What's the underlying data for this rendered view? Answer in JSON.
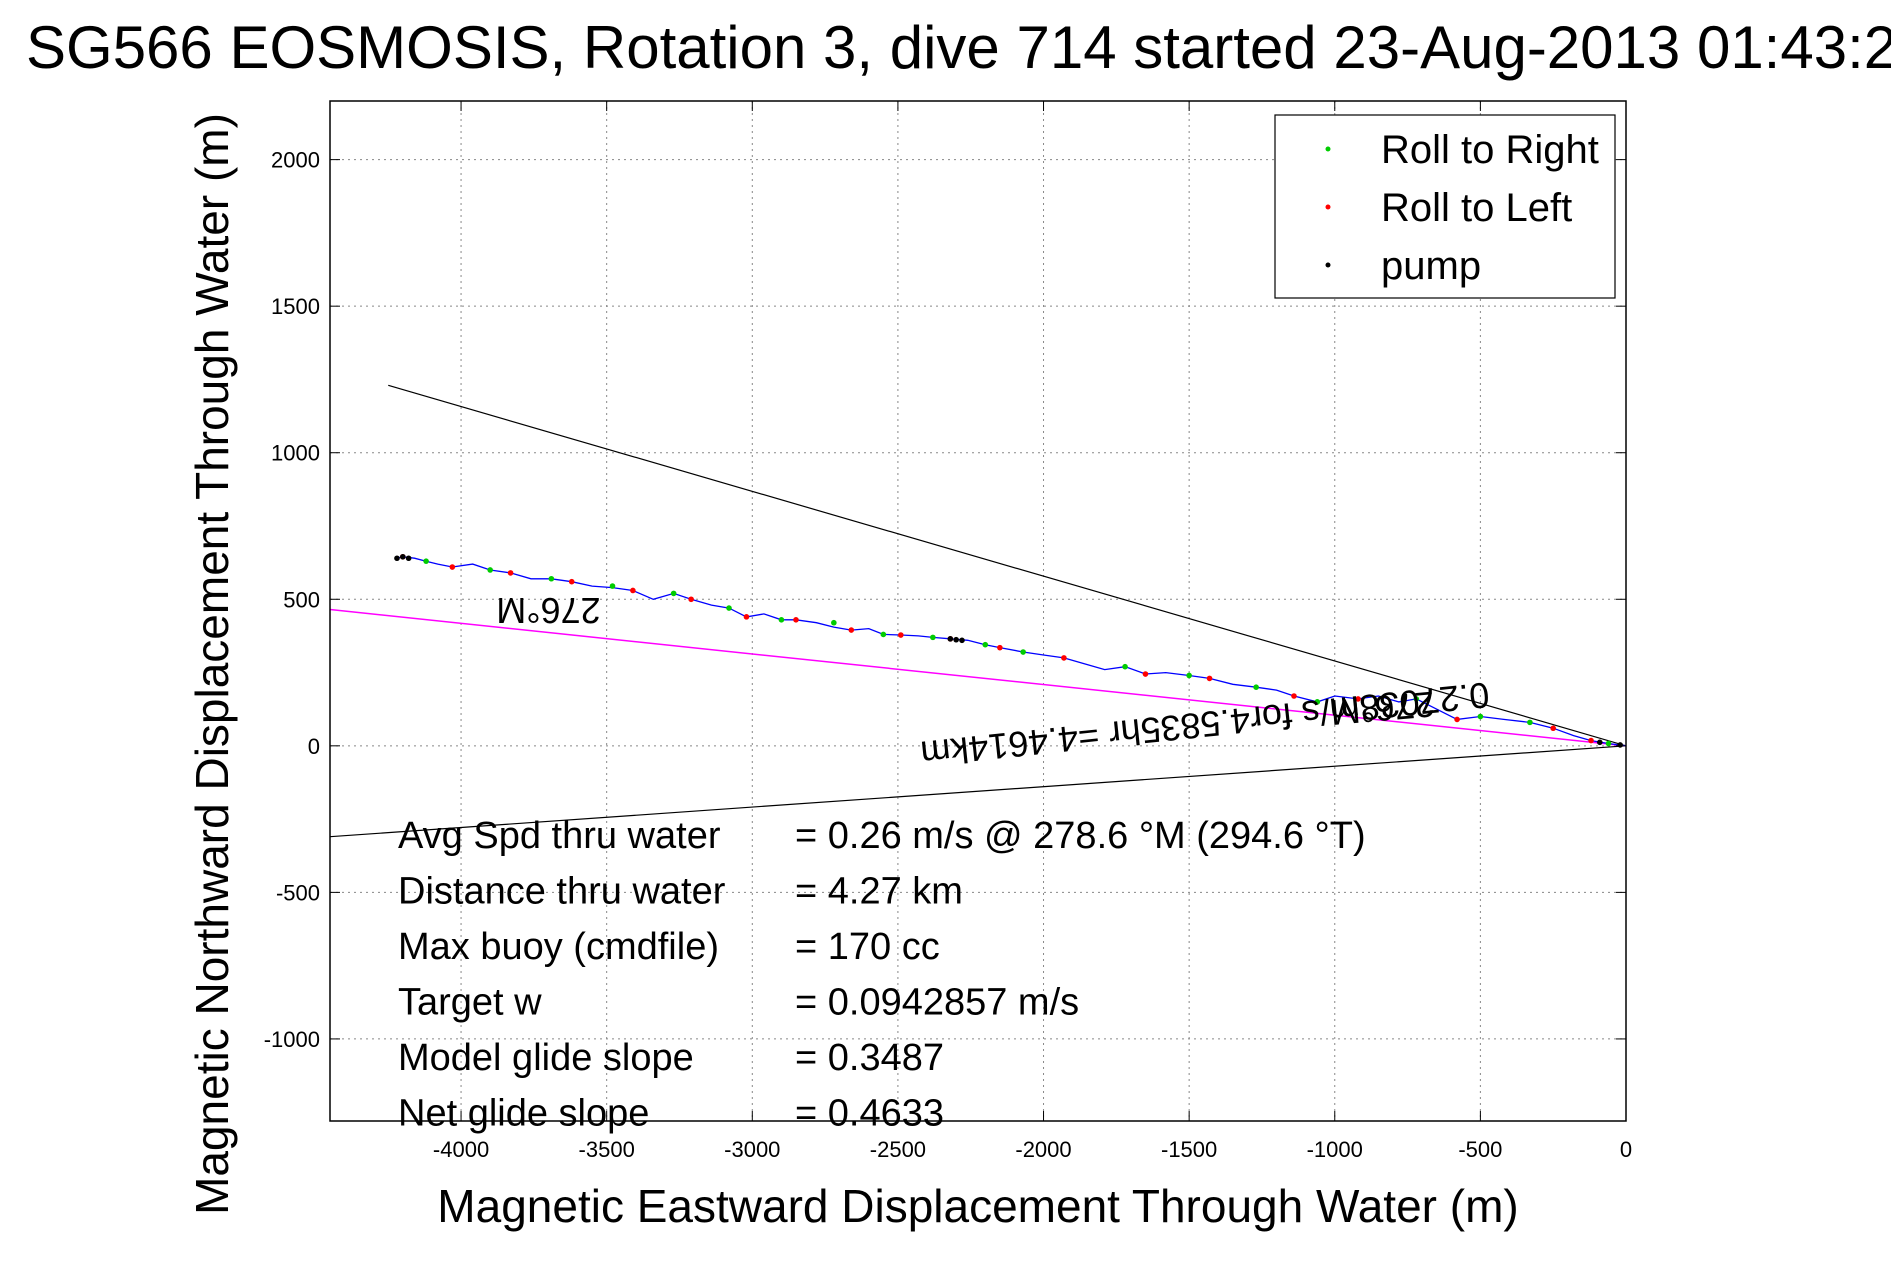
{
  "chart_data": {
    "type": "line",
    "title": "SG566 EOSMOSIS, Rotation 3, dive 714 started 23-Aug-2013 01:43:2",
    "xlabel": "Magnetic Eastward Displacement Through Water (m)",
    "ylabel": "Magnetic Northward Displacement Through Water (m)",
    "xlim": [
      -4450,
      0
    ],
    "ylim": [
      -1280,
      2200
    ],
    "xticks": [
      -4000,
      -3500,
      -3000,
      -2500,
      -2000,
      -1500,
      -1000,
      -500,
      0
    ],
    "yticks": [
      -1000,
      -500,
      0,
      500,
      1000,
      1500,
      2000
    ],
    "xtick_labels": [
      "-4000",
      "-3500",
      "-3000",
      "-2500",
      "-2000",
      "-1500",
      "-1000",
      "-500",
      "0"
    ],
    "ytick_labels": [
      "-1000",
      "-500",
      "0",
      "500",
      "1000",
      "1500",
      "2000"
    ],
    "grid": true,
    "legend": {
      "position": "top-right",
      "entries": [
        {
          "label": "Roll to Right",
          "color": "#00cc00"
        },
        {
          "label": "Roll to Left",
          "color": "#ff0000"
        },
        {
          "label": "pump",
          "color": "#000000"
        }
      ]
    },
    "colors": {
      "track": "#0000ff",
      "roll_right": "#00cc00",
      "roll_left": "#ff0000",
      "pump": "#000000",
      "heading_lines": "#000000",
      "avg_line": "#ff00ff",
      "grid": "#888888"
    },
    "track": {
      "x": [
        0,
        -60,
        -120,
        -180,
        -250,
        -330,
        -420,
        -500,
        -580,
        -660,
        -720,
        -780,
        -850,
        -920,
        -1000,
        -1060,
        -1140,
        -1200,
        -1270,
        -1350,
        -1430,
        -1500,
        -1580,
        -1650,
        -1720,
        -1790,
        -1860,
        -1930,
        -2000,
        -2070,
        -2150,
        -2200,
        -2260,
        -2320,
        -2380,
        -2430,
        -2490,
        -2550,
        -2600,
        -2660,
        -2720,
        -2780,
        -2850,
        -2900,
        -2960,
        -3020,
        -3080,
        -3140,
        -3210,
        -3270,
        -3340,
        -3410,
        -3480,
        -3550,
        -3620,
        -3690,
        -3760,
        -3830,
        -3900,
        -3960,
        -4030,
        -4080,
        -4120,
        -4160,
        -4200,
        -4220
      ],
      "y": [
        0,
        8,
        18,
        35,
        60,
        80,
        90,
        100,
        90,
        130,
        160,
        150,
        170,
        160,
        170,
        150,
        170,
        190,
        200,
        210,
        230,
        240,
        250,
        245,
        270,
        260,
        280,
        300,
        310,
        320,
        335,
        345,
        360,
        365,
        370,
        375,
        378,
        380,
        400,
        395,
        405,
        420,
        430,
        430,
        450,
        440,
        470,
        480,
        500,
        520,
        500,
        530,
        540,
        545,
        560,
        570,
        570,
        590,
        600,
        620,
        610,
        620,
        630,
        640,
        645,
        640
      ]
    },
    "roll_right_points": {
      "x": [
        -60,
        -330,
        -500,
        -720,
        -1060,
        -1270,
        -1500,
        -1720,
        -2070,
        -2200,
        -2380,
        -2550,
        -2720,
        -2900,
        -3080,
        -3270,
        -3480,
        -3690,
        -3900,
        -4120
      ],
      "y": [
        8,
        80,
        100,
        160,
        150,
        200,
        240,
        270,
        320,
        345,
        370,
        380,
        420,
        430,
        470,
        520,
        545,
        570,
        600,
        630
      ]
    },
    "roll_left_points": {
      "x": [
        -120,
        -250,
        -580,
        -920,
        -1140,
        -1430,
        -1650,
        -1930,
        -2150,
        -2320,
        -2490,
        -2660,
        -2850,
        -3020,
        -3210,
        -3410,
        -3620,
        -3830,
        -4030,
        -4200
      ],
      "y": [
        18,
        60,
        90,
        160,
        170,
        230,
        245,
        300,
        335,
        365,
        378,
        395,
        430,
        440,
        500,
        530,
        560,
        590,
        610,
        645
      ]
    },
    "pump_points": {
      "x": [
        -20,
        -90,
        -2280,
        -2300,
        -2320,
        -4180,
        -4200,
        -4220
      ],
      "y": [
        3,
        12,
        360,
        362,
        365,
        640,
        645,
        640
      ]
    },
    "heading_lines": [
      {
        "x": [
          0,
          -4250
        ],
        "y": [
          0,
          1230
        ]
      },
      {
        "x": [
          0,
          -4450
        ],
        "y": [
          0,
          -310
        ]
      }
    ],
    "avg_line": {
      "x": [
        0,
        -4450
      ],
      "y": [
        0,
        465
      ]
    },
    "annotations": [
      {
        "text": "276°M",
        "x": -3700,
        "y": 505,
        "rotation": 180
      },
      {
        "text": "276°M",
        "x": -840,
        "y": 170,
        "rotation": 175
      },
      {
        "text": "0.27038m/s for4.5835hr =4.4614km",
        "x": -1450,
        "y": 115,
        "rotation": 174
      }
    ],
    "stats": [
      {
        "label": "Avg Spd thru water",
        "value": "=  0.26 m/s @ 278.6 °M (294.6 °T)"
      },
      {
        "label": "Distance thru water",
        "value": "=  4.27 km"
      },
      {
        "label": "Max buoy (cmdfile)",
        "value": "= 170 cc"
      },
      {
        "label": "Target w",
        "value": "= 0.0942857 m/s"
      },
      {
        "label": "Model glide slope",
        "value": "= 0.3487"
      },
      {
        "label": "Net glide slope",
        "value": "= 0.4633"
      }
    ]
  }
}
